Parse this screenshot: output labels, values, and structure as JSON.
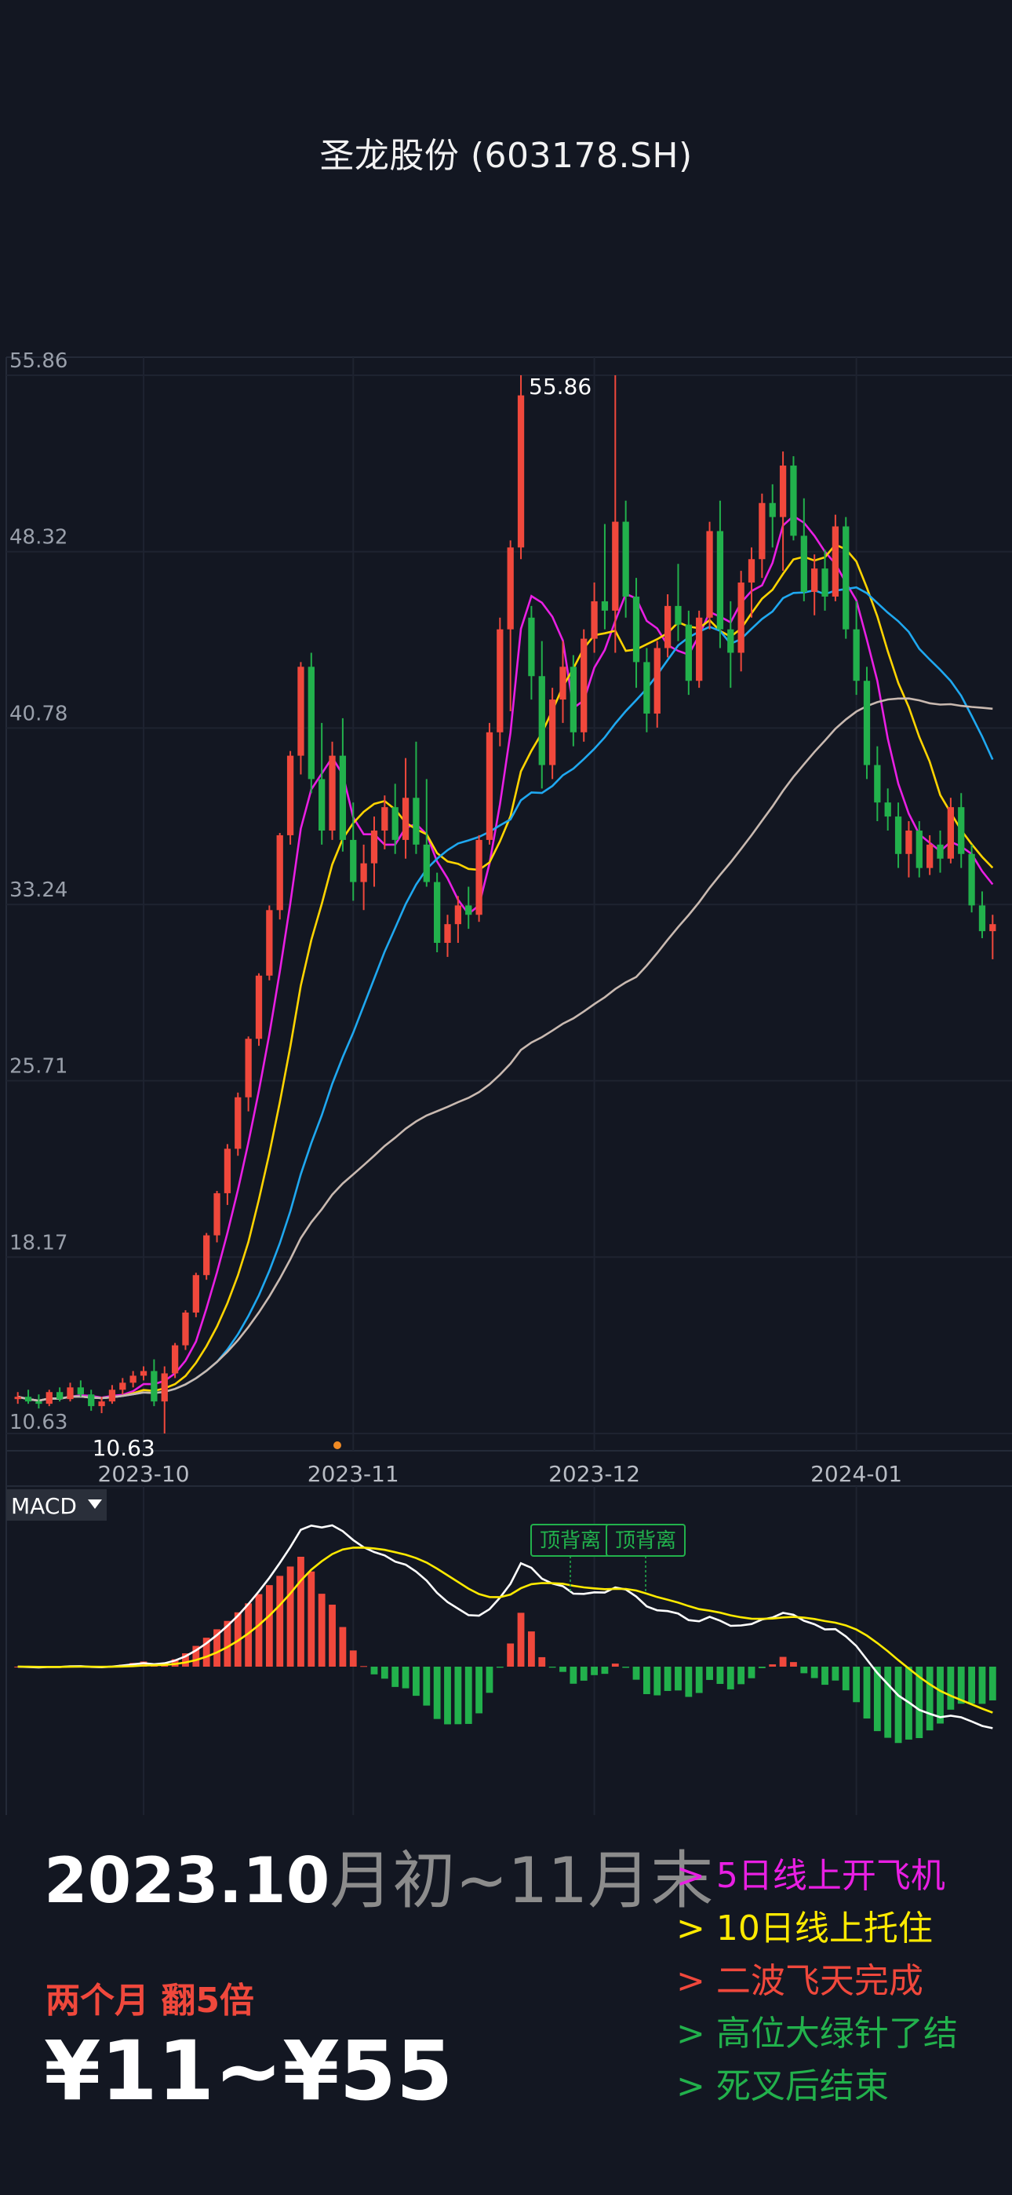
{
  "title": "圣龙股份 (603178.SH)",
  "chart_data": {
    "type": "candlestick",
    "y_axis_ticks": [
      "55.86",
      "48.32",
      "40.78",
      "33.24",
      "25.71",
      "18.17",
      "10.63"
    ],
    "ylim": [
      10.63,
      55.86
    ],
    "x_axis_ticks": [
      "2023-10",
      "2023-11",
      "2023-12",
      "2024-01"
    ],
    "x_tick_index": [
      12,
      32,
      55,
      80
    ],
    "annotations": {
      "high_label": "55.86",
      "low_label": "10.63"
    },
    "ohlc": [
      [
        12.1,
        12.4,
        11.9,
        12.2
      ],
      [
        12.2,
        12.5,
        11.9,
        12.0
      ],
      [
        12.0,
        12.3,
        11.7,
        11.9
      ],
      [
        11.9,
        12.5,
        11.8,
        12.4
      ],
      [
        12.4,
        12.6,
        12.0,
        12.1
      ],
      [
        12.1,
        12.8,
        12.0,
        12.6
      ],
      [
        12.6,
        12.9,
        12.2,
        12.3
      ],
      [
        12.3,
        12.5,
        11.6,
        11.8
      ],
      [
        11.8,
        12.2,
        11.5,
        12.0
      ],
      [
        12.0,
        12.7,
        11.9,
        12.5
      ],
      [
        12.5,
        13.0,
        12.3,
        12.8
      ],
      [
        12.8,
        13.3,
        12.6,
        13.1
      ],
      [
        13.1,
        13.5,
        12.9,
        13.3
      ],
      [
        13.3,
        13.8,
        11.8,
        12.0
      ],
      [
        12.0,
        13.5,
        10.63,
        13.2
      ],
      [
        13.2,
        14.5,
        13.0,
        14.4
      ],
      [
        14.4,
        15.9,
        14.2,
        15.8
      ],
      [
        15.8,
        17.5,
        15.6,
        17.4
      ],
      [
        17.4,
        19.2,
        17.2,
        19.1
      ],
      [
        19.1,
        21.0,
        18.8,
        20.9
      ],
      [
        20.9,
        23.0,
        20.4,
        22.8
      ],
      [
        22.8,
        25.2,
        22.5,
        25.0
      ],
      [
        25.0,
        27.6,
        24.4,
        27.5
      ],
      [
        27.5,
        30.3,
        27.2,
        30.2
      ],
      [
        30.2,
        33.2,
        30.0,
        33.0
      ],
      [
        33.0,
        36.3,
        32.6,
        36.2
      ],
      [
        36.2,
        39.8,
        35.8,
        39.6
      ],
      [
        39.6,
        43.6,
        38.8,
        43.4
      ],
      [
        43.4,
        44.0,
        38.0,
        38.6
      ],
      [
        38.6,
        41.0,
        35.8,
        36.4
      ],
      [
        36.4,
        40.2,
        36.0,
        39.6
      ],
      [
        39.6,
        41.2,
        35.5,
        36.0
      ],
      [
        36.0,
        37.6,
        33.4,
        34.2
      ],
      [
        34.2,
        35.8,
        33.0,
        35.0
      ],
      [
        35.0,
        37.0,
        34.0,
        36.4
      ],
      [
        36.4,
        37.9,
        35.6,
        37.4
      ],
      [
        37.4,
        38.4,
        35.4,
        36.0
      ],
      [
        36.0,
        39.5,
        35.2,
        37.8
      ],
      [
        37.8,
        40.2,
        35.4,
        35.8
      ],
      [
        35.8,
        38.6,
        34.0,
        34.2
      ],
      [
        34.2,
        34.6,
        31.2,
        31.6
      ],
      [
        31.6,
        32.8,
        31.0,
        32.4
      ],
      [
        32.4,
        33.6,
        31.6,
        33.2
      ],
      [
        33.2,
        34.0,
        32.2,
        32.8
      ],
      [
        32.8,
        36.2,
        32.5,
        36.0
      ],
      [
        36.0,
        41.0,
        35.8,
        40.6
      ],
      [
        40.6,
        45.5,
        40.0,
        45.0
      ],
      [
        45.0,
        48.8,
        41.5,
        48.5
      ],
      [
        48.5,
        55.86,
        48.0,
        55.0
      ],
      [
        45.5,
        46.0,
        42.0,
        43.0
      ],
      [
        43.0,
        44.5,
        38.2,
        39.2
      ],
      [
        39.2,
        42.5,
        38.6,
        42.0
      ],
      [
        42.0,
        44.5,
        41.0,
        43.4
      ],
      [
        43.4,
        43.9,
        40.0,
        40.6
      ],
      [
        40.6,
        45.0,
        40.2,
        44.6
      ],
      [
        44.6,
        47.0,
        44.0,
        46.2
      ],
      [
        46.2,
        49.5,
        45.0,
        45.8
      ],
      [
        45.8,
        55.86,
        44.0,
        49.6
      ],
      [
        49.6,
        50.5,
        45.5,
        46.4
      ],
      [
        46.4,
        47.2,
        42.5,
        43.6
      ],
      [
        43.6,
        44.2,
        40.6,
        41.4
      ],
      [
        41.4,
        44.5,
        40.8,
        44.2
      ],
      [
        44.2,
        46.5,
        43.8,
        46.0
      ],
      [
        46.0,
        47.8,
        44.5,
        45.2
      ],
      [
        45.2,
        45.8,
        42.2,
        42.8
      ],
      [
        42.8,
        45.8,
        42.5,
        45.5
      ],
      [
        45.5,
        49.6,
        45.0,
        49.2
      ],
      [
        49.2,
        50.5,
        44.2,
        45.0
      ],
      [
        45.0,
        46.2,
        42.5,
        44.0
      ],
      [
        44.0,
        47.5,
        43.2,
        47.0
      ],
      [
        47.0,
        48.5,
        45.5,
        48.0
      ],
      [
        48.0,
        50.8,
        47.2,
        50.4
      ],
      [
        50.4,
        51.2,
        48.5,
        49.8
      ],
      [
        49.8,
        52.6,
        47.5,
        52.0
      ],
      [
        52.0,
        52.4,
        48.8,
        49.0
      ],
      [
        49.0,
        50.6,
        46.2,
        46.6
      ],
      [
        46.6,
        48.2,
        45.6,
        47.6
      ],
      [
        47.6,
        48.4,
        45.8,
        46.4
      ],
      [
        46.4,
        49.9,
        46.2,
        49.4
      ],
      [
        49.4,
        49.8,
        44.6,
        45.0
      ],
      [
        45.0,
        46.2,
        42.2,
        42.8
      ],
      [
        42.8,
        43.4,
        38.6,
        39.2
      ],
      [
        39.2,
        40.0,
        36.8,
        37.6
      ],
      [
        37.6,
        38.2,
        36.4,
        37.0
      ],
      [
        37.0,
        37.6,
        34.8,
        35.4
      ],
      [
        35.4,
        36.8,
        34.4,
        36.4
      ],
      [
        36.4,
        36.8,
        34.4,
        34.8
      ],
      [
        34.8,
        36.2,
        34.5,
        35.8
      ],
      [
        35.8,
        36.4,
        34.6,
        35.2
      ],
      [
        35.2,
        37.8,
        35.0,
        37.4
      ],
      [
        37.4,
        38.0,
        34.8,
        35.4
      ],
      [
        35.4,
        35.8,
        32.9,
        33.2
      ],
      [
        33.2,
        33.8,
        31.8,
        32.1
      ],
      [
        32.1,
        32.8,
        30.9,
        32.4
      ]
    ],
    "moving_averages": [
      {
        "name": "MA5",
        "color": "#e91fe3",
        "period": 5
      },
      {
        "name": "MA10",
        "color": "#ffd400",
        "period": 10
      },
      {
        "name": "MA20",
        "color": "#1fa8f0",
        "period": 20
      },
      {
        "name": "MA60",
        "color": "#c9b9b0",
        "period": 60
      }
    ],
    "indicator": {
      "name": "MACD",
      "dif_color": "#ffffff",
      "dea_color": "#ffea00",
      "hist_up_color": "#f0483c",
      "hist_down_color": "#22b14c",
      "divergence_labels": [
        "顶背离",
        "顶背离"
      ]
    }
  },
  "overlay": {
    "date_range_main": "2023.10",
    "date_range_suffix": "月初~11月末",
    "gain_note": "两个月 翻5倍",
    "price_range": "¥11~¥55",
    "notes": [
      {
        "text": "> 5日线上开飞机",
        "color": "#e91fe3"
      },
      {
        "text": "> 10日线上托住",
        "color": "#ffea00"
      },
      {
        "text": "> 二波飞天完成",
        "color": "#f0483c"
      },
      {
        "text": "> 高位大绿针了结",
        "color": "#22b14c"
      },
      {
        "text": "> 死叉后结束",
        "color": "#22b14c"
      }
    ]
  }
}
